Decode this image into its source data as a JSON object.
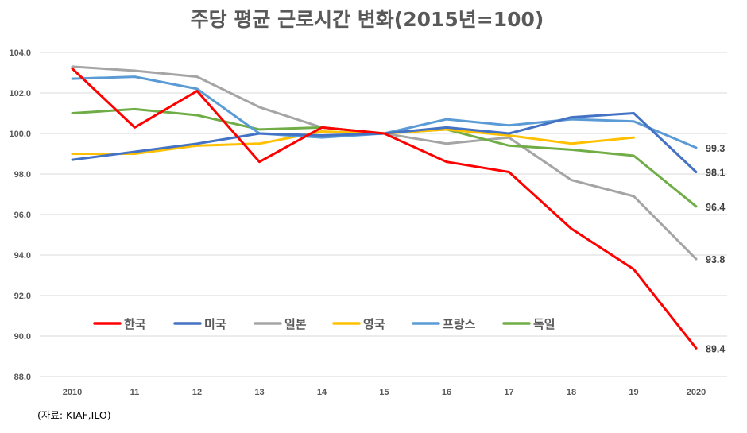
{
  "chart_data": {
    "type": "line",
    "title": "주당 평균 근로시간 변화(2015년=100)",
    "categories": [
      "2010",
      "11",
      "12",
      "13",
      "14",
      "15",
      "16",
      "17",
      "18",
      "19",
      "2020"
    ],
    "ylim": [
      88,
      104
    ],
    "yticks": [
      "88.0",
      "90.0",
      "92.0",
      "94.0",
      "96.0",
      "98.0",
      "100.0",
      "102.0",
      "104.0"
    ],
    "grid": true,
    "legend_position": "bottom-left",
    "source": "(자료: KIAF,ILO)",
    "series": [
      {
        "name": "한국",
        "color": "#ff0000",
        "values": [
          103.2,
          100.3,
          102.1,
          98.6,
          100.3,
          100.0,
          98.6,
          98.1,
          95.3,
          93.3,
          89.4
        ],
        "end_label": "89.4"
      },
      {
        "name": "미국",
        "color": "#4472c4",
        "values": [
          98.7,
          99.1,
          99.5,
          100.0,
          99.9,
          100.0,
          100.3,
          100.0,
          100.8,
          101.0,
          98.1
        ],
        "end_label": "98.1"
      },
      {
        "name": "일본",
        "color": "#a5a5a5",
        "values": [
          103.3,
          103.1,
          102.8,
          101.3,
          100.3,
          100.0,
          99.5,
          99.8,
          97.7,
          96.9,
          93.8
        ],
        "end_label": "93.8"
      },
      {
        "name": "영국",
        "color": "#ffc000",
        "values": [
          99.0,
          99.0,
          99.4,
          99.5,
          100.1,
          100.0,
          100.2,
          99.9,
          99.5,
          99.8,
          null
        ],
        "end_label": ""
      },
      {
        "name": "프랑스",
        "color": "#5b9bd5",
        "values": [
          102.7,
          102.8,
          102.2,
          100.0,
          99.8,
          100.0,
          100.7,
          100.4,
          100.7,
          100.6,
          99.3
        ],
        "end_label": "99.3"
      },
      {
        "name": "독일",
        "color": "#70ad47",
        "values": [
          101.0,
          101.2,
          100.9,
          100.2,
          100.3,
          100.0,
          100.2,
          99.4,
          99.2,
          98.9,
          96.4
        ],
        "end_label": "96.4"
      }
    ]
  }
}
